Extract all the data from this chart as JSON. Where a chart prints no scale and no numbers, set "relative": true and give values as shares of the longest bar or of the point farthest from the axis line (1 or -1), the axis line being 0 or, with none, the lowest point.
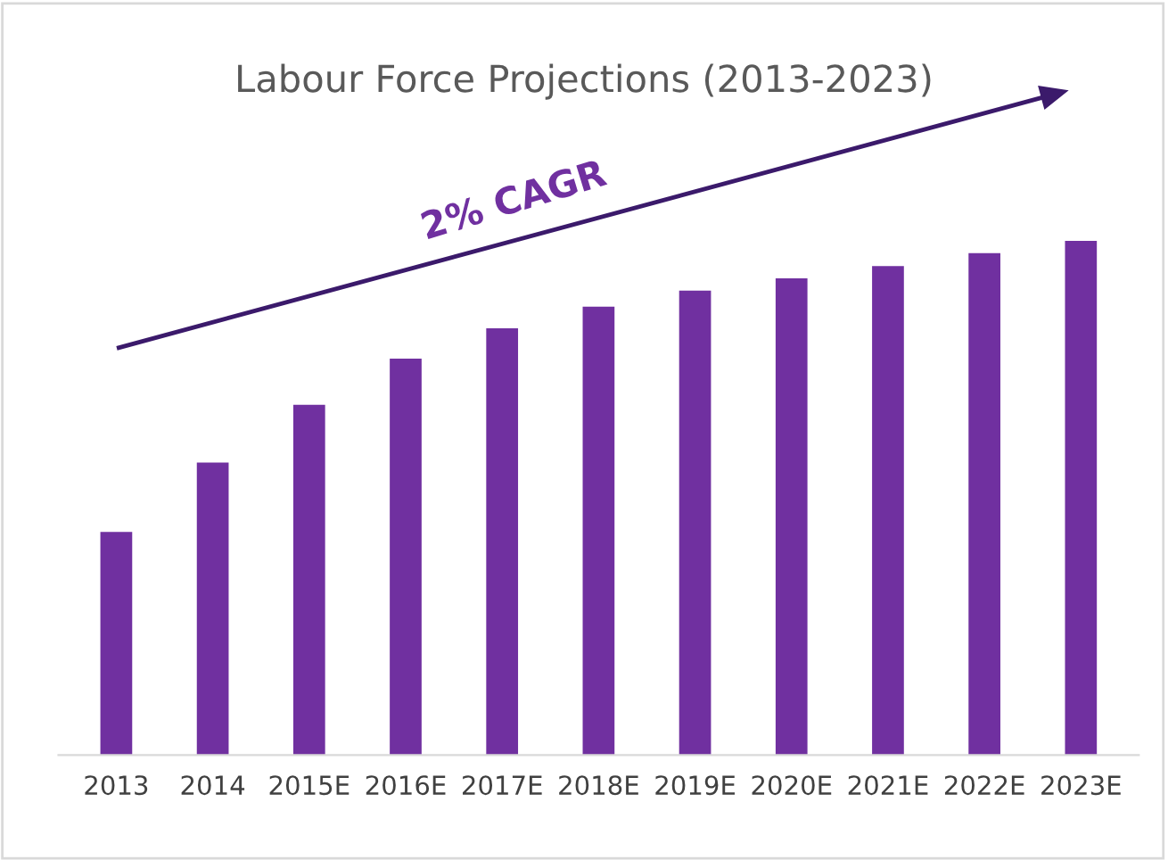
{
  "chart_data": {
    "type": "bar",
    "title": "Labour Force Projections (2013-2023)",
    "relative": true,
    "categories": [
      "2013",
      "2014",
      "2015E",
      "2016E",
      "2017E",
      "2018E",
      "2019E",
      "2020E",
      "2021E",
      "2022E",
      "2023E"
    ],
    "values": [
      0.434,
      0.569,
      0.681,
      0.771,
      0.83,
      0.872,
      0.903,
      0.927,
      0.951,
      0.976,
      1
    ],
    "color": "#7030a0",
    "grid": false,
    "legend": false,
    "annotations": [
      "2% CAGR"
    ]
  }
}
